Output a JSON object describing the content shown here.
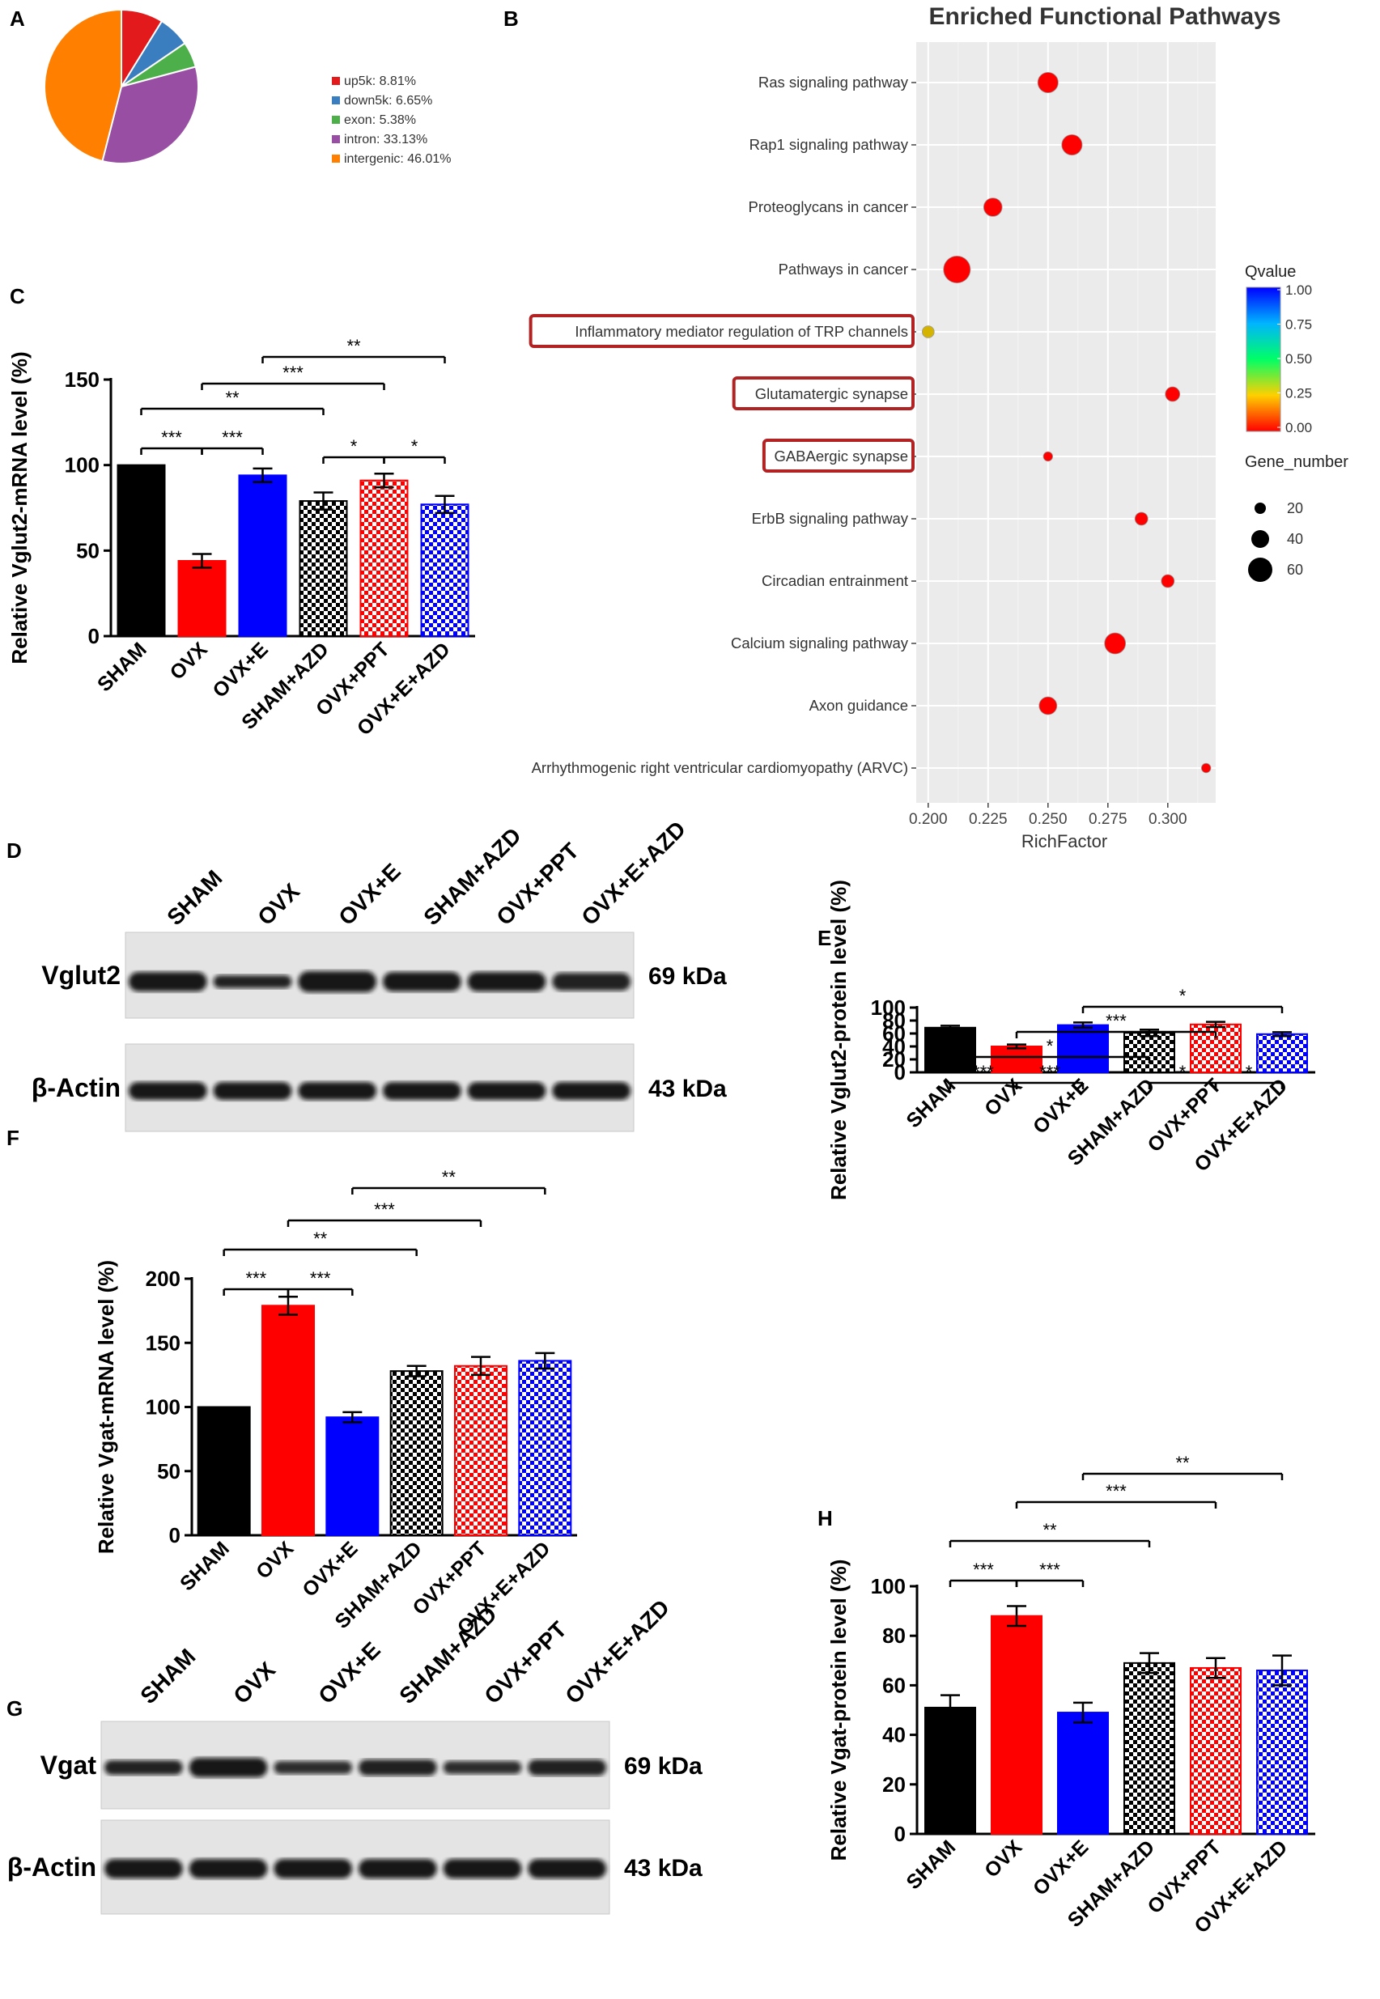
{
  "panel_letters": {
    "A": "A",
    "B": "B",
    "C": "C",
    "D": "D",
    "E": "E",
    "F": "F",
    "G": "G",
    "H": "H"
  },
  "colors": {
    "sham": "#000000",
    "ovx": "#ff0000",
    "ovx_e": "#0000ff",
    "sham_azd": "#000000",
    "ovx_ppt": "#ff0000",
    "ovx_e_azd": "#0000ff",
    "pie_up5k": "#e31a1c",
    "pie_down5k": "#3a7ebf",
    "pie_exon": "#4daf4a",
    "pie_intron": "#984ea3",
    "pie_intergenic": "#ff7f00",
    "highlight_box": "#b22222",
    "grid_bg": "#ebebeb"
  },
  "chart_data": [
    {
      "id": "A",
      "type": "pie",
      "slices": [
        {
          "label": "up5k: 8.81%",
          "value": 8.81,
          "color": "#e31a1c"
        },
        {
          "label": "down5k: 6.65%",
          "value": 6.65,
          "color": "#3a7ebf"
        },
        {
          "label": "exon: 5.38%",
          "value": 5.38,
          "color": "#4daf4a"
        },
        {
          "label": "intron: 33.13%",
          "value": 33.13,
          "color": "#984ea3"
        },
        {
          "label": "intergenic: 46.01%",
          "value": 46.01,
          "color": "#ff7f00"
        }
      ],
      "legend": "right"
    },
    {
      "id": "B",
      "type": "scatter",
      "title": "Enriched Functional Pathways",
      "xlabel": "RichFactor",
      "xlim": [
        0.195,
        0.32
      ],
      "xticks": [
        "0.200",
        "0.225",
        "0.250",
        "0.275",
        "0.300"
      ],
      "xtick_values": [
        0.2,
        0.225,
        0.25,
        0.275,
        0.3
      ],
      "pathways": [
        {
          "name": "Ras signaling pathway",
          "rich": 0.25,
          "genes": 48,
          "q": 0.0,
          "highlight": false
        },
        {
          "name": "Rap1 signaling pathway",
          "rich": 0.26,
          "genes": 48,
          "q": 0.0,
          "highlight": false
        },
        {
          "name": "Proteoglycans in cancer",
          "rich": 0.227,
          "genes": 42,
          "q": 0.0,
          "highlight": false
        },
        {
          "name": "Pathways in cancer",
          "rich": 0.212,
          "genes": 68,
          "q": 0.0,
          "highlight": false
        },
        {
          "name": "Inflammatory mediator regulation of TRP channels",
          "rich": 0.2,
          "genes": 22,
          "q": 0.12,
          "highlight": true
        },
        {
          "name": "Glutamatergic synapse",
          "rich": 0.302,
          "genes": 30,
          "q": 0.0,
          "highlight": true
        },
        {
          "name": "GABAergic synapse",
          "rich": 0.25,
          "genes": 14,
          "q": 0.0,
          "highlight": true
        },
        {
          "name": "ErbB signaling pathway",
          "rich": 0.289,
          "genes": 25,
          "q": 0.0,
          "highlight": false
        },
        {
          "name": "Circadian entrainment",
          "rich": 0.3,
          "genes": 25,
          "q": 0.0,
          "highlight": false
        },
        {
          "name": "Calcium signaling pathway",
          "rich": 0.278,
          "genes": 50,
          "q": 0.0,
          "highlight": false
        },
        {
          "name": "Axon guidance",
          "rich": 0.25,
          "genes": 40,
          "q": 0.0,
          "highlight": false
        },
        {
          "name": "Arrhythmogenic right ventricular cardiomyopathy (ARVC)",
          "rich": 0.316,
          "genes": 14,
          "q": 0.0,
          "highlight": false
        }
      ],
      "qvalue_legend": {
        "title": "Qvalue",
        "ticks": [
          "1.00",
          "0.75",
          "0.50",
          "0.25",
          "0.00"
        ]
      },
      "gene_legend": {
        "title": "Gene_number",
        "entries": [
          {
            "label": "20",
            "value": 20
          },
          {
            "label": "40",
            "value": 40
          },
          {
            "label": "60",
            "value": 60
          }
        ]
      }
    },
    {
      "id": "C",
      "type": "bar",
      "ylabel": "Relative Vglut2-mRNA level (%)",
      "ylim": [
        0,
        150
      ],
      "yticks": [
        "0",
        "50",
        "100",
        "150"
      ],
      "ytick_values": [
        0,
        50,
        100,
        150
      ],
      "categories": [
        "SHAM",
        "OVX",
        "OVX+E",
        "SHAM+AZD",
        "OVX+PPT",
        "OVX+E+AZD"
      ],
      "values": [
        100,
        44,
        94,
        79,
        91,
        77
      ],
      "errors": [
        0,
        4,
        4,
        5,
        4,
        5
      ],
      "sig": [
        {
          "from": 0,
          "to": 1,
          "label": "***"
        },
        {
          "from": 1,
          "to": 2,
          "label": "***"
        },
        {
          "from": 3,
          "to": 4,
          "label": "*"
        },
        {
          "from": 4,
          "to": 5,
          "label": "*"
        },
        {
          "from": 0,
          "to": 3,
          "label": "**"
        },
        {
          "from": 1,
          "to": 4,
          "label": "***"
        },
        {
          "from": 2,
          "to": 5,
          "label": "**"
        }
      ]
    },
    {
      "id": "E",
      "type": "bar",
      "ylabel": "Relative Vglut2-protein level (%)",
      "ylim": [
        0,
        100
      ],
      "yticks": [
        "0",
        "20",
        "40",
        "60",
        "80",
        "100"
      ],
      "ytick_values": [
        0,
        20,
        40,
        60,
        80,
        100
      ],
      "categories": [
        "SHAM",
        "OVX",
        "OVX+E",
        "SHAM+AZD",
        "OVX+PPT",
        "OVX+E+AZD"
      ],
      "values": [
        69,
        40,
        73,
        61,
        74,
        59
      ],
      "errors": [
        3,
        3,
        4,
        5,
        4,
        3
      ],
      "sig": [
        {
          "from": 0,
          "to": 1,
          "label": "***"
        },
        {
          "from": 1,
          "to": 2,
          "label": "***"
        },
        {
          "from": 3,
          "to": 4,
          "label": "*"
        },
        {
          "from": 4,
          "to": 5,
          "label": "*"
        },
        {
          "from": 0,
          "to": 3,
          "label": "*"
        },
        {
          "from": 1,
          "to": 4,
          "label": "***"
        },
        {
          "from": 2,
          "to": 5,
          "label": "*"
        }
      ]
    },
    {
      "id": "F",
      "type": "bar",
      "ylabel": "Relative Vgat-mRNA level (%)",
      "ylim": [
        0,
        200
      ],
      "yticks": [
        "0",
        "50",
        "100",
        "150",
        "200"
      ],
      "ytick_values": [
        0,
        50,
        100,
        150,
        200
      ],
      "categories": [
        "SHAM",
        "OVX",
        "OVX+E",
        "SHAM+AZD",
        "OVX+PPT",
        "OVX+E+AZD"
      ],
      "values": [
        100,
        179,
        92,
        128,
        132,
        136
      ],
      "errors": [
        0,
        7,
        4,
        4,
        7,
        6
      ],
      "sig": [
        {
          "from": 0,
          "to": 1,
          "label": "***"
        },
        {
          "from": 1,
          "to": 2,
          "label": "***"
        },
        {
          "from": 0,
          "to": 3,
          "label": "**"
        },
        {
          "from": 1,
          "to": 4,
          "label": "***"
        },
        {
          "from": 2,
          "to": 5,
          "label": "**"
        }
      ]
    },
    {
      "id": "H",
      "type": "bar",
      "ylabel": "Relative Vgat-protein level (%)",
      "ylim": [
        0,
        100
      ],
      "yticks": [
        "0",
        "20",
        "40",
        "60",
        "80",
        "100"
      ],
      "ytick_values": [
        0,
        20,
        40,
        60,
        80,
        100
      ],
      "categories": [
        "SHAM",
        "OVX",
        "OVX+E",
        "SHAM+AZD",
        "OVX+PPT",
        "OVX+E+AZD"
      ],
      "values": [
        51,
        88,
        49,
        69,
        67,
        66
      ],
      "errors": [
        5,
        4,
        4,
        4,
        4,
        6
      ],
      "sig": [
        {
          "from": 0,
          "to": 1,
          "label": "***"
        },
        {
          "from": 1,
          "to": 2,
          "label": "***"
        },
        {
          "from": 0,
          "to": 3,
          "label": "**"
        },
        {
          "from": 1,
          "to": 4,
          "label": "***"
        },
        {
          "from": 2,
          "to": 5,
          "label": "**"
        }
      ]
    }
  ],
  "blots": {
    "D": {
      "lanes": [
        "SHAM",
        "OVX",
        "OVX+E",
        "SHAM+AZD",
        "OVX+PPT",
        "OVX+E+AZD"
      ],
      "rows": [
        {
          "name": "Vglut2",
          "size": "69 kDa"
        },
        {
          "name": "β-Actin",
          "size": "43 kDa"
        }
      ]
    },
    "G": {
      "lanes": [
        "SHAM",
        "OVX",
        "OVX+E",
        "SHAM+AZD",
        "OVX+PPT",
        "OVX+E+AZD"
      ],
      "rows": [
        {
          "name": "Vgat",
          "size": "69 kDa"
        },
        {
          "name": "β-Actin",
          "size": "43 kDa"
        }
      ]
    }
  }
}
